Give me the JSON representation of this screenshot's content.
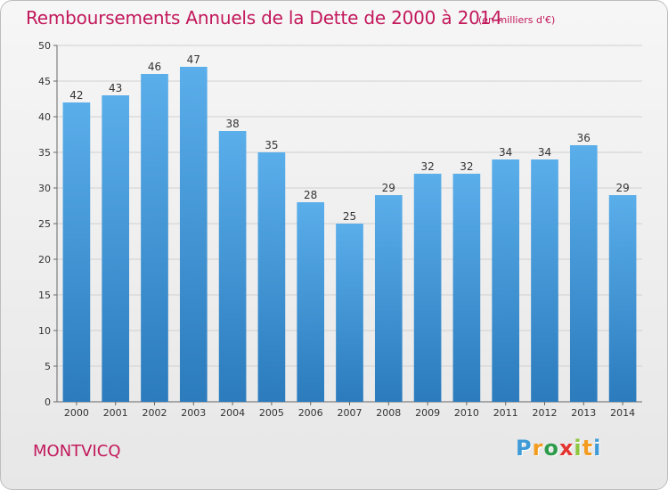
{
  "chart_data": {
    "type": "bar",
    "title": "Remboursements Annuels de la Dette de 2000 à 2014",
    "subtitle": "(en milliers d'€)",
    "categories": [
      "2000",
      "2001",
      "2002",
      "2003",
      "2004",
      "2005",
      "2006",
      "2007",
      "2008",
      "2009",
      "2010",
      "2011",
      "2012",
      "2013",
      "2014"
    ],
    "values": [
      42,
      43,
      46,
      47,
      38,
      35,
      28,
      25,
      29,
      32,
      32,
      34,
      34,
      36,
      29
    ],
    "ylim": [
      0,
      50
    ],
    "yticks": [
      0,
      5,
      10,
      15,
      20,
      25,
      30,
      35,
      40,
      45,
      50
    ],
    "grid": true,
    "bar_color_top": "#5aaeea",
    "bar_color_bottom": "#2b7bbd"
  },
  "footer": {
    "town": "MONTVICQ",
    "logo": [
      "P",
      "r",
      "o",
      "x",
      "i",
      "t",
      "i"
    ]
  }
}
